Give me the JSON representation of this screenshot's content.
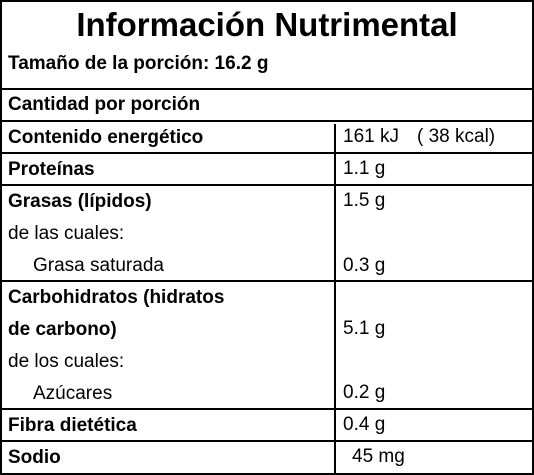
{
  "label": {
    "title": "Información Nutrimental",
    "serving": "Tamaño de la porción: 16.2 g",
    "section_header": "Cantidad por porción",
    "energy": {
      "name": "Contenido energético",
      "kj": "161 kJ",
      "kcal": "(   38 kcal)"
    },
    "rows": [
      {
        "name": "Proteínas",
        "value": "1.1 g"
      },
      {
        "name": "Grasas (lípidos)",
        "value": "1.5 g"
      },
      {
        "name": "de las cuales:",
        "value": ""
      },
      {
        "name": "Grasa saturada",
        "value": "0.3 g"
      },
      {
        "name": "Carbohidratos (hidratos",
        "value": ""
      },
      {
        "name": "de carbono)",
        "value": "5.1 g"
      },
      {
        "name": "de los cuales:",
        "value": ""
      },
      {
        "name": "Azúcares",
        "value": "0.2 g"
      },
      {
        "name": "Fibra dietética",
        "value": "0.4 g"
      },
      {
        "name": "Sodio",
        "value": "45 mg"
      }
    ]
  }
}
